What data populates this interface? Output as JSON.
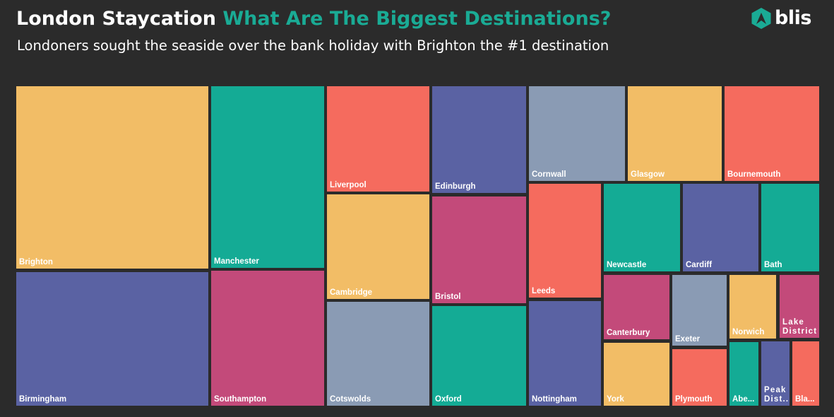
{
  "header": {
    "title_main": "London Staycation",
    "title_accent": "What Are The Biggest Destinations?",
    "subtitle": "Londoners sought the seaside over the bank holiday with Brighton the #1 destination",
    "logo_text": "blis",
    "logo_icon": "blis-logo-icon"
  },
  "colors": {
    "background": "#2b2b2b",
    "yellow": "#f2bd66",
    "teal": "#14ab95",
    "coral": "#f56b5e",
    "blue": "#5a62a3",
    "magenta": "#c34a7a",
    "grey": "#8a9bb4",
    "accent": "#1aab95"
  },
  "chart_data": {
    "type": "treemap",
    "items": [
      {
        "name": "Brighton",
        "color": "yellow"
      },
      {
        "name": "Birmingham",
        "color": "blue"
      },
      {
        "name": "Manchester",
        "color": "teal"
      },
      {
        "name": "Southampton",
        "color": "magenta"
      },
      {
        "name": "Liverpool",
        "color": "coral"
      },
      {
        "name": "Cambridge",
        "color": "yellow"
      },
      {
        "name": "Cotswolds",
        "color": "grey"
      },
      {
        "name": "Edinburgh",
        "color": "blue"
      },
      {
        "name": "Bristol",
        "color": "magenta"
      },
      {
        "name": "Oxford",
        "color": "teal"
      },
      {
        "name": "Cornwall",
        "color": "grey"
      },
      {
        "name": "Glasgow",
        "color": "yellow"
      },
      {
        "name": "Bournemouth",
        "color": "coral"
      },
      {
        "name": "Leeds",
        "color": "coral"
      },
      {
        "name": "Nottingham",
        "color": "blue"
      },
      {
        "name": "Newcastle",
        "color": "teal"
      },
      {
        "name": "Cardiff",
        "color": "blue"
      },
      {
        "name": "Bath",
        "color": "teal"
      },
      {
        "name": "Canterbury",
        "color": "magenta"
      },
      {
        "name": "Exeter",
        "color": "grey"
      },
      {
        "name": "Norwich",
        "color": "yellow"
      },
      {
        "name": "Lake District",
        "color": "magenta"
      },
      {
        "name": "York",
        "color": "yellow"
      },
      {
        "name": "Plymouth",
        "color": "coral"
      },
      {
        "name": "Abe...",
        "color": "teal"
      },
      {
        "name": "Peak Dist...",
        "color": "blue"
      },
      {
        "name": "Bla...",
        "color": "coral"
      }
    ]
  }
}
